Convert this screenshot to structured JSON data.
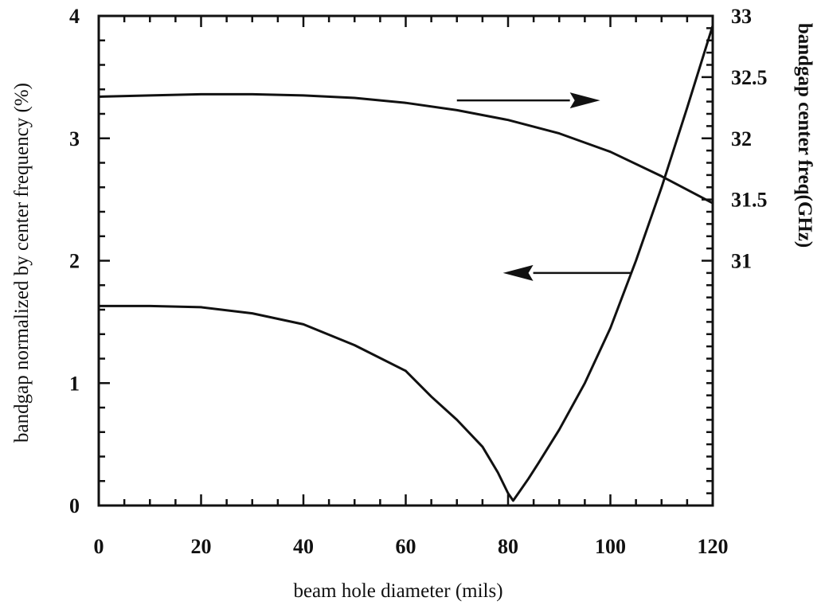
{
  "chart_data": {
    "type": "line",
    "xlabel": "beam hole diameter (mils)",
    "ylabel_left": "bandgap normalized by center frequency (%)",
    "ylabel_right": "bandgap center freq(GHz)",
    "xlim": [
      0,
      120
    ],
    "ylim_left": [
      0,
      4
    ],
    "ylim_right": [
      29.0,
      33.0
    ],
    "x_ticks": [
      0,
      20,
      40,
      60,
      80,
      100,
      120
    ],
    "y_ticks_left": [
      0,
      1,
      2,
      3,
      4
    ],
    "y_ticks_right": [
      31,
      31.5,
      32,
      32.5,
      33
    ],
    "grid": false,
    "series": [
      {
        "axis": "left",
        "x": [
          0,
          10,
          20,
          30,
          40,
          50,
          60,
          65,
          70,
          75,
          78,
          80,
          81,
          82,
          84,
          86,
          90,
          95,
          100,
          105,
          110,
          115,
          120
        ],
        "y": [
          1.63,
          1.63,
          1.62,
          1.57,
          1.48,
          1.31,
          1.1,
          0.89,
          0.7,
          0.48,
          0.27,
          0.1,
          0.04,
          0.1,
          0.22,
          0.35,
          0.62,
          1.0,
          1.45,
          2.0,
          2.6,
          3.25,
          3.92
        ]
      },
      {
        "axis": "right",
        "x": [
          0,
          10,
          20,
          30,
          40,
          50,
          60,
          70,
          80,
          90,
          100,
          110,
          120
        ],
        "y": [
          32.34,
          32.35,
          32.36,
          32.36,
          32.35,
          32.33,
          32.29,
          32.23,
          32.15,
          32.04,
          31.89,
          31.69,
          31.47
        ]
      }
    ],
    "annotations": [
      {
        "type": "arrow",
        "direction": "right",
        "x_from": 70,
        "x_to": 98,
        "y": 32.31,
        "axis": "right"
      },
      {
        "type": "arrow",
        "direction": "left",
        "x_from": 104,
        "x_to": 79,
        "y": 1.9,
        "axis": "left"
      }
    ]
  }
}
